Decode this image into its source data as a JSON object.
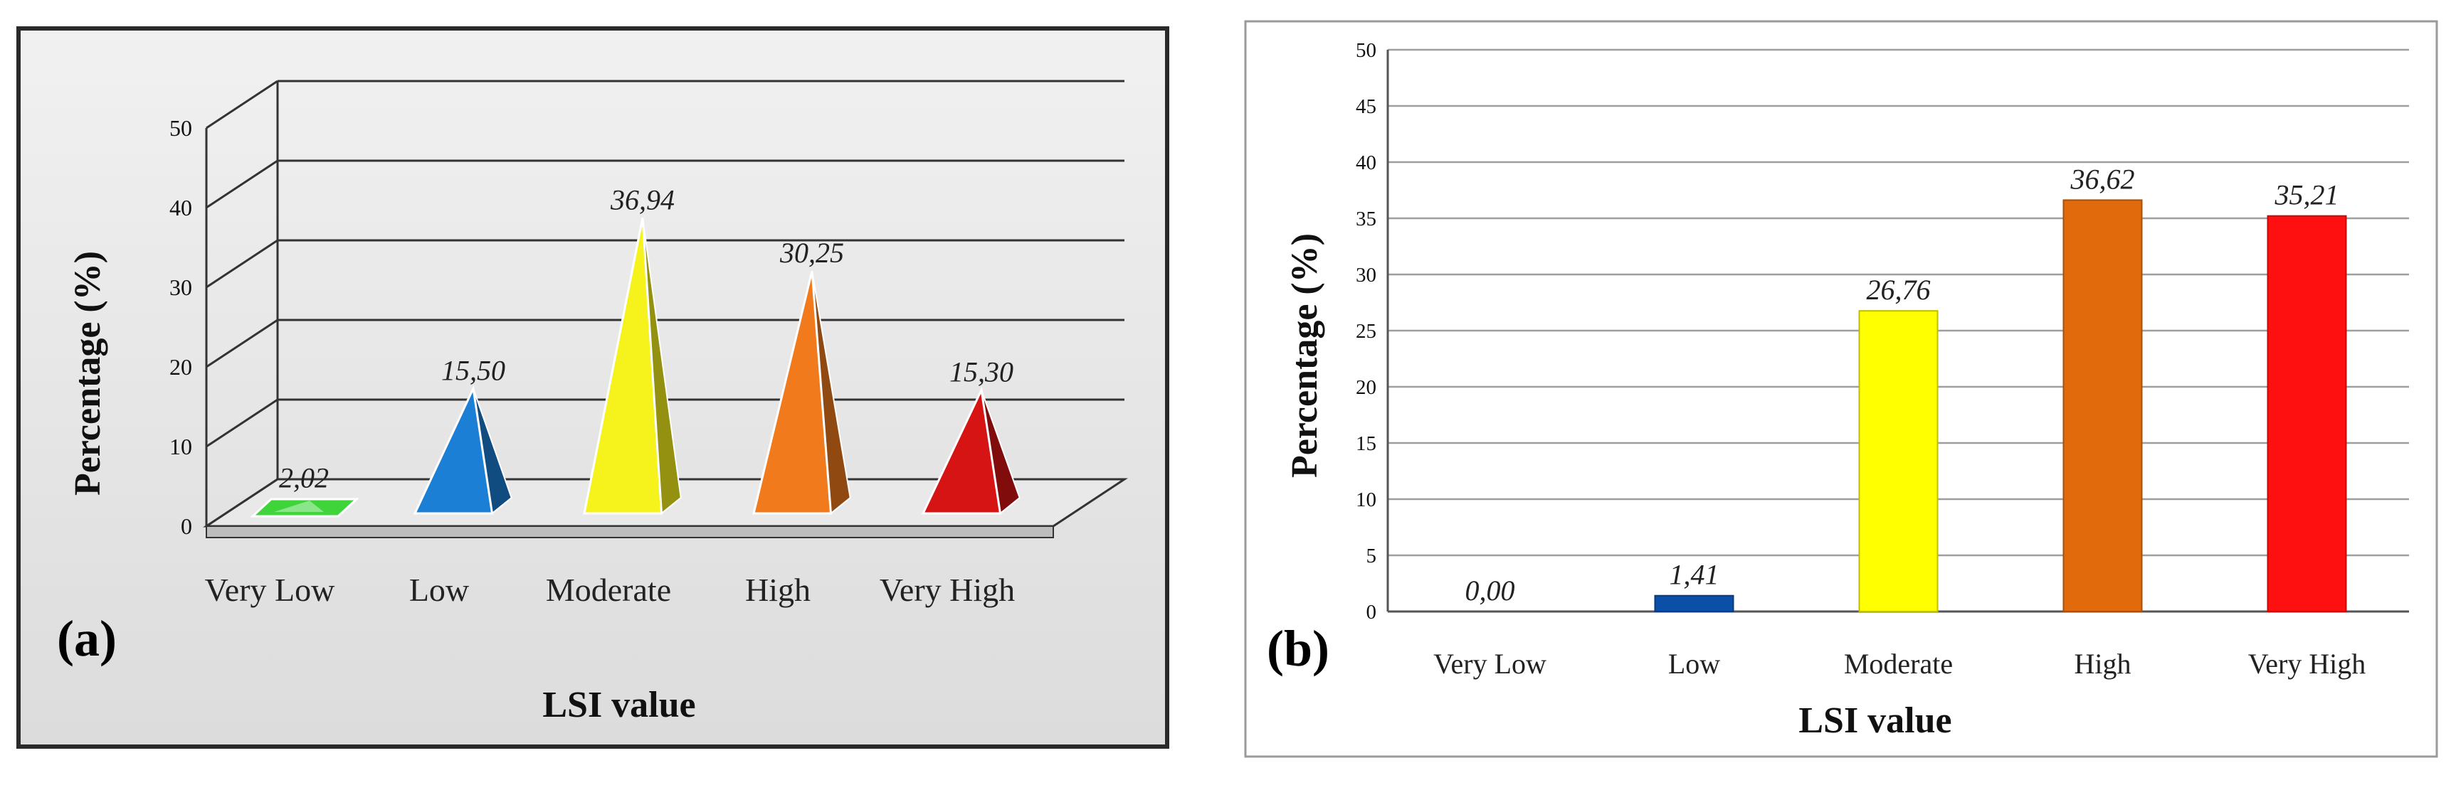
{
  "chart_data": [
    {
      "type": "bar",
      "style": "3d-pyramid",
      "panel_label": "(a)",
      "categories": [
        "Very Low",
        "Low",
        "Moderate",
        "High",
        "Very High"
      ],
      "values": [
        2.02,
        15.5,
        36.94,
        30.25,
        15.3
      ],
      "value_labels": [
        "2,02",
        "15,50",
        "36,94",
        "30,25",
        "15,30"
      ],
      "colors": [
        "#3ed43a",
        "#1c7fd6",
        "#f6f21c",
        "#f07a1c",
        "#d61414"
      ],
      "xlabel": "LSI value",
      "ylabel": "Percentage (%)",
      "ylim": [
        0,
        50
      ],
      "yticks": [
        "0",
        "10",
        "20",
        "30",
        "40",
        "50"
      ]
    },
    {
      "type": "bar",
      "panel_label": "(b)",
      "categories": [
        "Very Low",
        "Low",
        "Moderate",
        "High",
        "Very High"
      ],
      "values": [
        0.0,
        1.41,
        26.76,
        36.62,
        35.21
      ],
      "value_labels": [
        "0,00",
        "1,41",
        "26,76",
        "36,62",
        "35,21"
      ],
      "colors": [
        "#3ed43a",
        "#0a4fa8",
        "#ffff00",
        "#e06a0c",
        "#ff1010"
      ],
      "xlabel": "LSI value",
      "ylabel": "Percentage (%)",
      "ylim": [
        0,
        50
      ],
      "yticks": [
        "0",
        "5",
        "10",
        "15",
        "20",
        "25",
        "30",
        "35",
        "40",
        "45",
        "50"
      ]
    }
  ]
}
